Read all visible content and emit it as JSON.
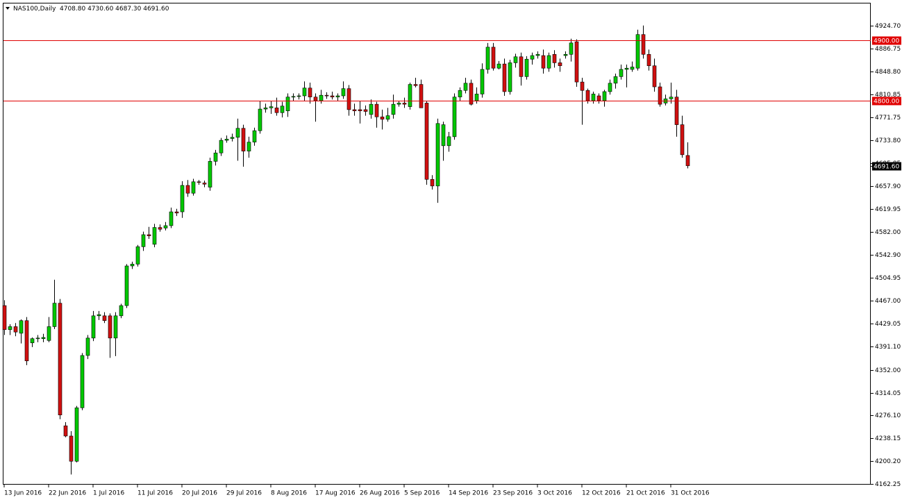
{
  "chart_data": {
    "type": "candlestick",
    "symbol": "NAS100,Daily",
    "ohlc_text": "4708.80 4730.60 4687.30 4691.60",
    "up_color": "#00c800",
    "down_color": "#d01010",
    "level_color": "#e00000",
    "categories": [
      "13 Jun 2016",
      null,
      null,
      null,
      null,
      null,
      null,
      null,
      "22 Jun 2016",
      null,
      null,
      null,
      null,
      null,
      null,
      null,
      "1 Jul 2016",
      null,
      null,
      null,
      null,
      null,
      null,
      null,
      "11 Jul 2016",
      null,
      null,
      null,
      null,
      null,
      null,
      null,
      "20 Jul 2016",
      null,
      null,
      null,
      null,
      null,
      null,
      null,
      "29 Jul 2016",
      null,
      null,
      null,
      null,
      null,
      null,
      null,
      "8 Aug 2016",
      null,
      null,
      null,
      null,
      null,
      null,
      null,
      "17 Aug 2016",
      null,
      null,
      null,
      null,
      null,
      null,
      null,
      "26 Aug 2016",
      null,
      null,
      null,
      null,
      null,
      null,
      null,
      "5 Sep 2016",
      null,
      null,
      null,
      null,
      null,
      null,
      null,
      "14 Sep 2016",
      null,
      null,
      null,
      null,
      null,
      null,
      null,
      "23 Sep 2016",
      null,
      null,
      null,
      null,
      null,
      null,
      null,
      "3 Oct 2016",
      null,
      null,
      null,
      null,
      null,
      null,
      null,
      "12 Oct 2016",
      null,
      null,
      null,
      null,
      null,
      null,
      null,
      "21 Oct 2016",
      null,
      null,
      null,
      null,
      null,
      null,
      null,
      "31 Oct 2016",
      null,
      null,
      null
    ],
    "open": [
      4459,
      4419,
      4424,
      4413,
      4434,
      4397,
      4404,
      4404,
      4401,
      4424,
      4463,
      4259,
      4242,
      4200,
      4289,
      4376,
      4405,
      4442,
      4442,
      4442,
      4405,
      4442,
      4459,
      4525,
      4528,
      4557,
      4577,
      4561,
      4589,
      4588,
      4592,
      4615,
      4615,
      4659,
      4646,
      4665,
      4663,
      4656,
      4699,
      4713,
      4734,
      4737,
      4739,
      4754,
      4716,
      4731,
      4750,
      4786,
      4788,
      4788,
      4780,
      4783,
      4806,
      4807,
      4808,
      4821,
      4806,
      4800,
      4809,
      4808,
      4806,
      4808,
      4820,
      4785,
      4785,
      4785,
      4777,
      4794,
      4773,
      4769,
      4777,
      4794,
      4796,
      4790,
      4827,
      4827,
      4796,
      4669,
      4658,
      4725,
      4725,
      4740,
      4806,
      4817,
      4829,
      4800,
      4811,
      4852,
      4889,
      4854,
      4861,
      4815,
      4863,
      4873,
      4840,
      4869,
      4875,
      4875,
      4854,
      4877,
      4863,
      4875,
      4877,
      4898,
      4831,
      4817,
      4800,
      4808,
      4800,
      4815,
      4829,
      4840,
      4852,
      4852,
      4854,
      4910,
      4877,
      4858,
      4823,
      4796,
      4803,
      4806,
      4760,
      4708.8
    ],
    "high": [
      4468,
      4428,
      4430,
      4436,
      4440,
      4406,
      4410,
      4412,
      4440,
      4502,
      4470,
      4265,
      4250,
      4292,
      4380,
      4410,
      4450,
      4450,
      4448,
      4446,
      4448,
      4462,
      4528,
      4532,
      4560,
      4582,
      4590,
      4595,
      4594,
      4598,
      4622,
      4620,
      4666,
      4668,
      4670,
      4668,
      4667,
      4705,
      4718,
      4738,
      4742,
      4745,
      4770,
      4760,
      4740,
      4755,
      4800,
      4795,
      4800,
      4805,
      4798,
      4812,
      4812,
      4812,
      4832,
      4830,
      4812,
      4818,
      4814,
      4815,
      4812,
      4832,
      4826,
      4795,
      4800,
      4792,
      4802,
      4798,
      4785,
      4788,
      4810,
      4800,
      4805,
      4830,
      4838,
      4835,
      4800,
      4676,
      4770,
      4765,
      4748,
      4812,
      4822,
      4838,
      4835,
      4822,
      4862,
      4896,
      4896,
      4866,
      4870,
      4868,
      4878,
      4880,
      4874,
      4880,
      4882,
      4885,
      4880,
      4884,
      4870,
      4882,
      4903,
      4902,
      4838,
      4820,
      4815,
      4812,
      4818,
      4835,
      4845,
      4860,
      4860,
      4865,
      4918,
      4925,
      4885,
      4870,
      4830,
      4810,
      4830,
      4818,
      4775,
      4730.6
    ],
    "low": [
      4410,
      4410,
      4408,
      4396,
      4360,
      4390,
      4398,
      4398,
      4398,
      4420,
      4270,
      4240,
      4178,
      4198,
      4285,
      4370,
      4400,
      4435,
      4430,
      4372,
      4375,
      4438,
      4455,
      4520,
      4524,
      4550,
      4570,
      4556,
      4582,
      4584,
      4588,
      4608,
      4605,
      4640,
      4642,
      4660,
      4656,
      4650,
      4692,
      4708,
      4730,
      4732,
      4700,
      4690,
      4705,
      4725,
      4745,
      4780,
      4778,
      4775,
      4772,
      4773,
      4800,
      4802,
      4800,
      4795,
      4765,
      4795,
      4803,
      4802,
      4800,
      4803,
      4775,
      4775,
      4762,
      4775,
      4770,
      4755,
      4752,
      4765,
      4770,
      4790,
      4788,
      4785,
      4822,
      4790,
      4660,
      4652,
      4630,
      4700,
      4715,
      4735,
      4800,
      4812,
      4792,
      4795,
      4805,
      4845,
      4850,
      4852,
      4808,
      4810,
      4855,
      4825,
      4835,
      4860,
      4870,
      4845,
      4848,
      4855,
      4848,
      4870,
      4865,
      4823,
      4760,
      4795,
      4795,
      4795,
      4790,
      4810,
      4820,
      4835,
      4822,
      4848,
      4850,
      4870,
      4850,
      4815,
      4790,
      4792,
      4795,
      4740,
      4705,
      4687.3
    ],
    "close": [
      4419,
      4424,
      4415,
      4434,
      4367,
      4404,
      4405,
      4406,
      4424,
      4463,
      4277,
      4242,
      4200,
      4289,
      4376,
      4405,
      4442,
      4444,
      4434,
      4405,
      4442,
      4459,
      4525,
      4528,
      4557,
      4577,
      4575,
      4589,
      4586,
      4592,
      4615,
      4613,
      4659,
      4646,
      4665,
      4664,
      4661,
      4699,
      4713,
      4734,
      4736,
      4739,
      4754,
      4716,
      4731,
      4750,
      4786,
      4788,
      4790,
      4780,
      4791,
      4806,
      4807,
      4808,
      4821,
      4806,
      4800,
      4809,
      4808,
      4806,
      4808,
      4820,
      4785,
      4783,
      4783,
      4782,
      4794,
      4773,
      4769,
      4775,
      4794,
      4796,
      4794,
      4827,
      4825,
      4788,
      4669,
      4658,
      4762,
      4760,
      4740,
      4806,
      4817,
      4829,
      4794,
      4811,
      4852,
      4889,
      4854,
      4861,
      4815,
      4863,
      4873,
      4840,
      4869,
      4875,
      4877,
      4854,
      4875,
      4863,
      4858,
      4877,
      4896,
      4831,
      4817,
      4800,
      4811,
      4800,
      4815,
      4829,
      4840,
      4852,
      4854,
      4856,
      4910,
      4877,
      4858,
      4823,
      4794,
      4803,
      4806,
      4760,
      4710,
      4691.6
    ],
    "levels": [
      {
        "value": 4900,
        "label": "4900.00"
      },
      {
        "value": 4800,
        "label": "4800.00"
      }
    ],
    "last_price": {
      "value": 4691.6,
      "label": "4691.60"
    },
    "ylim": [
      4162.25,
      4961.67
    ],
    "yticks": [
      {
        "value": 4924.7,
        "label": "4924.70"
      },
      {
        "value": 4886.75,
        "label": "4886.75"
      },
      {
        "value": 4848.8,
        "label": "4848.80"
      },
      {
        "value": 4810.85,
        "label": "4810.85"
      },
      {
        "value": 4771.75,
        "label": "4771.75"
      },
      {
        "value": 4733.8,
        "label": "4733.80"
      },
      {
        "value": 4695.85,
        "label": "4695.85"
      },
      {
        "value": 4657.9,
        "label": "4657.90"
      },
      {
        "value": 4619.95,
        "label": "4619.95"
      },
      {
        "value": 4582.0,
        "label": "4582.00"
      },
      {
        "value": 4542.9,
        "label": "4542.90"
      },
      {
        "value": 4504.95,
        "label": "4504.95"
      },
      {
        "value": 4467.0,
        "label": "4467.00"
      },
      {
        "value": 4429.05,
        "label": "4429.05"
      },
      {
        "value": 4391.1,
        "label": "4391.10"
      },
      {
        "value": 4352.0,
        "label": "4352.00"
      },
      {
        "value": 4314.05,
        "label": "4314.05"
      },
      {
        "value": 4276.1,
        "label": "4276.10"
      },
      {
        "value": 4238.15,
        "label": "4238.15"
      },
      {
        "value": 4200.2,
        "label": "4200.20"
      },
      {
        "value": 4162.25,
        "label": "4162.25"
      }
    ]
  }
}
